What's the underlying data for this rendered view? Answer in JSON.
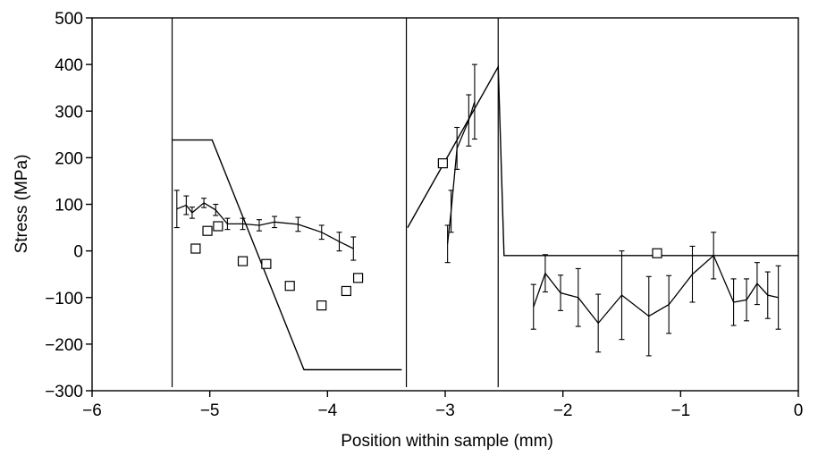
{
  "chart_data": {
    "type": "line",
    "xlabel": "Position within sample (mm)",
    "ylabel": "Stress (MPa)",
    "xlim": [
      -6,
      0
    ],
    "ylim": [
      -300,
      500
    ],
    "x_ticks": [
      -6,
      -5,
      -4,
      -3,
      -2,
      -1,
      0
    ],
    "x_tick_labels": [
      "−6",
      "−5",
      "−4",
      "−3",
      "−2",
      "−1",
      "0"
    ],
    "y_ticks": [
      500,
      400,
      300,
      200,
      100,
      0,
      -100,
      -200,
      -300
    ],
    "y_tick_labels": [
      "500",
      "400",
      "300",
      "200",
      "100",
      "0",
      "−100",
      "−200",
      "−300"
    ],
    "grid": false,
    "legend": "none",
    "vertical_lines_x": [
      -5.32,
      -3.33,
      -2.55
    ],
    "series": [
      {
        "style": "line",
        "segments": [
          [
            [
              -5.32,
              238
            ],
            [
              -4.98,
              238
            ],
            [
              -4.2,
              -255
            ],
            [
              -3.37,
              -255
            ]
          ],
          [
            [
              -3.32,
              50
            ],
            [
              -2.55,
              395
            ],
            [
              -2.5,
              -10
            ],
            [
              0,
              -10
            ]
          ]
        ]
      },
      {
        "style": "line-with-error-bars",
        "points": [
          {
            "x": -5.28,
            "y": 90,
            "err": 40
          },
          {
            "x": -5.2,
            "y": 98,
            "err": 20
          },
          {
            "x": -5.15,
            "y": 82,
            "err": 12
          },
          {
            "x": -5.05,
            "y": 103,
            "err": 10
          },
          {
            "x": -4.95,
            "y": 88,
            "err": 12
          },
          {
            "x": -4.85,
            "y": 58,
            "err": 12
          },
          {
            "x": -4.72,
            "y": 58,
            "err": 12
          },
          {
            "x": -4.58,
            "y": 55,
            "err": 12
          },
          {
            "x": -4.45,
            "y": 62,
            "err": 12
          },
          {
            "x": -4.25,
            "y": 57,
            "err": 15
          },
          {
            "x": -4.05,
            "y": 40,
            "err": 15
          },
          {
            "x": -3.9,
            "y": 20,
            "err": 20
          },
          {
            "x": -3.78,
            "y": 5,
            "err": 25
          }
        ]
      },
      {
        "style": "line-with-error-bars",
        "points": [
          {
            "x": -2.98,
            "y": 15,
            "err": 40
          },
          {
            "x": -2.95,
            "y": 85,
            "err": 45
          },
          {
            "x": -2.9,
            "y": 220,
            "err": 45
          },
          {
            "x": -2.8,
            "y": 280,
            "err": 55
          },
          {
            "x": -2.75,
            "y": 320,
            "err": 80
          }
        ]
      },
      {
        "style": "line-with-error-bars",
        "points": [
          {
            "x": -2.25,
            "y": -120,
            "err": 48
          },
          {
            "x": -2.15,
            "y": -48,
            "err": 40
          },
          {
            "x": -2.02,
            "y": -90,
            "err": 38
          },
          {
            "x": -1.87,
            "y": -100,
            "err": 62
          },
          {
            "x": -1.7,
            "y": -155,
            "err": 62
          },
          {
            "x": -1.5,
            "y": -95,
            "err": 95
          },
          {
            "x": -1.27,
            "y": -140,
            "err": 85
          },
          {
            "x": -1.1,
            "y": -115,
            "err": 62
          },
          {
            "x": -0.9,
            "y": -50,
            "err": 60
          },
          {
            "x": -0.72,
            "y": -10,
            "err": 50
          },
          {
            "x": -0.55,
            "y": -110,
            "err": 50
          },
          {
            "x": -0.44,
            "y": -105,
            "err": 45
          },
          {
            "x": -0.35,
            "y": -70,
            "err": 45
          },
          {
            "x": -0.26,
            "y": -95,
            "err": 50
          },
          {
            "x": -0.17,
            "y": -100,
            "err": 68
          }
        ]
      },
      {
        "style": "markers-square",
        "points": [
          {
            "x": -5.12,
            "y": 5
          },
          {
            "x": -5.02,
            "y": 43
          },
          {
            "x": -4.93,
            "y": 53
          },
          {
            "x": -4.72,
            "y": -22
          },
          {
            "x": -4.52,
            "y": -28
          },
          {
            "x": -4.32,
            "y": -75
          },
          {
            "x": -4.05,
            "y": -117
          },
          {
            "x": -3.84,
            "y": -86
          },
          {
            "x": -3.74,
            "y": -58
          },
          {
            "x": -3.02,
            "y": 188
          },
          {
            "x": -1.2,
            "y": -5
          }
        ]
      }
    ]
  }
}
